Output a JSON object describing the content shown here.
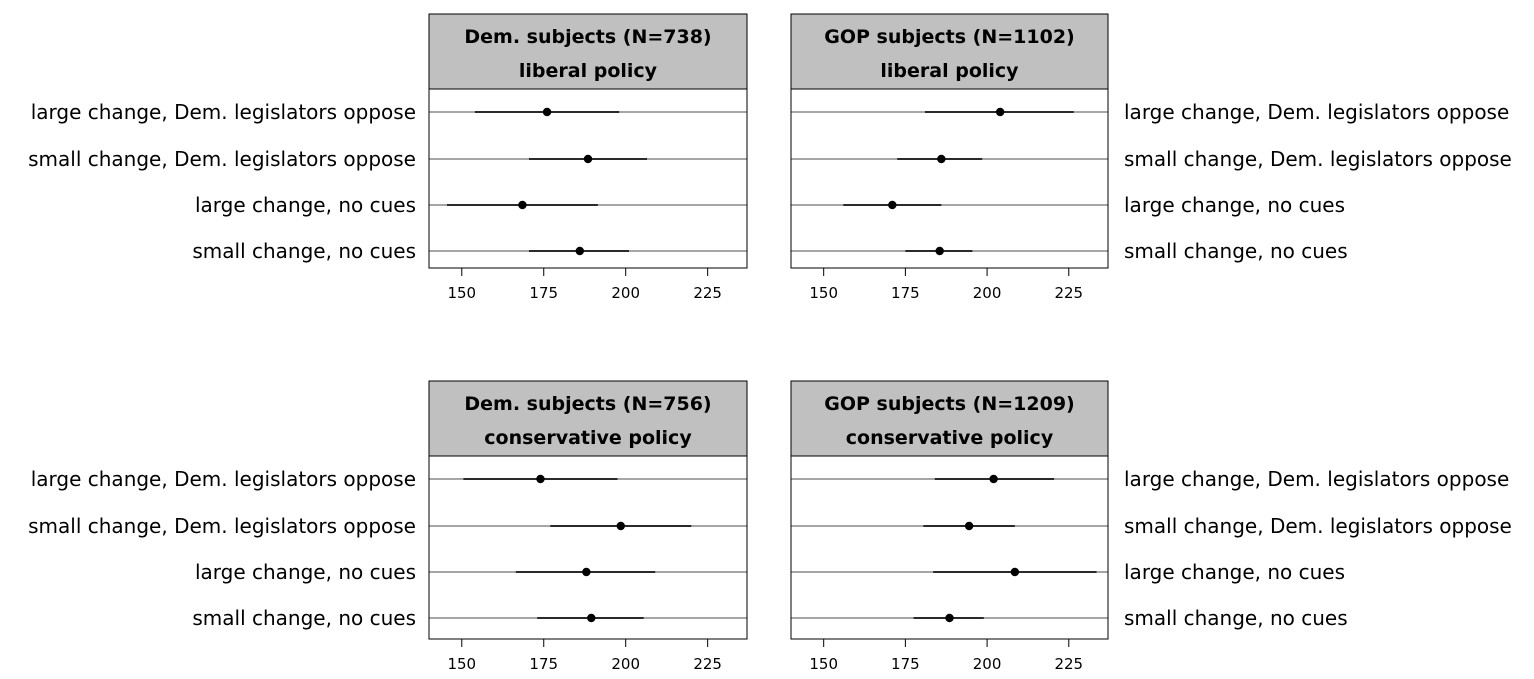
{
  "chart_data": {
    "type": "dot-and-whisker",
    "row_labels": [
      "large change, Dem. legislators oppose",
      "small change, Dem. legislators oppose",
      "large change, no cues",
      "small change, no cues"
    ],
    "xticks": [
      150,
      175,
      200,
      225
    ],
    "xlim": [
      140,
      237
    ],
    "grid": "horizontal lines at each row",
    "panels": [
      {
        "title_line1": "Dem. subjects (N=738)",
        "title_line2": "liberal policy",
        "estimates": [
          {
            "point": 176,
            "low": 154,
            "high": 198
          },
          {
            "point": 188.5,
            "low": 170.5,
            "high": 206.5
          },
          {
            "point": 168.5,
            "low": 145.5,
            "high": 191.5
          },
          {
            "point": 186,
            "low": 170.5,
            "high": 201
          }
        ]
      },
      {
        "title_line1": "GOP subjects (N=1102)",
        "title_line2": "liberal policy",
        "estimates": [
          {
            "point": 204,
            "low": 181,
            "high": 226.5
          },
          {
            "point": 186,
            "low": 172.5,
            "high": 198.5
          },
          {
            "point": 171,
            "low": 156,
            "high": 186
          },
          {
            "point": 185.5,
            "low": 175,
            "high": 195.5
          }
        ]
      },
      {
        "title_line1": "Dem. subjects (N=756)",
        "title_line2": "conservative policy",
        "estimates": [
          {
            "point": 174,
            "low": 150.5,
            "high": 197.5
          },
          {
            "point": 198.5,
            "low": 177,
            "high": 220
          },
          {
            "point": 188,
            "low": 166.5,
            "high": 209
          },
          {
            "point": 189.5,
            "low": 173,
            "high": 205.5
          }
        ]
      },
      {
        "title_line1": "GOP subjects (N=1209)",
        "title_line2": "conservative policy",
        "estimates": [
          {
            "point": 202,
            "low": 184,
            "high": 220.5
          },
          {
            "point": 194.5,
            "low": 180.5,
            "high": 208.5
          },
          {
            "point": 208.5,
            "low": 183.5,
            "high": 233.5
          },
          {
            "point": 188.5,
            "low": 177.5,
            "high": 199
          }
        ]
      }
    ]
  },
  "colors": {
    "strip_fill": "#c0c0c0",
    "grid_line": "#a6a6a6",
    "frame": "#000000",
    "point": "#000000"
  }
}
